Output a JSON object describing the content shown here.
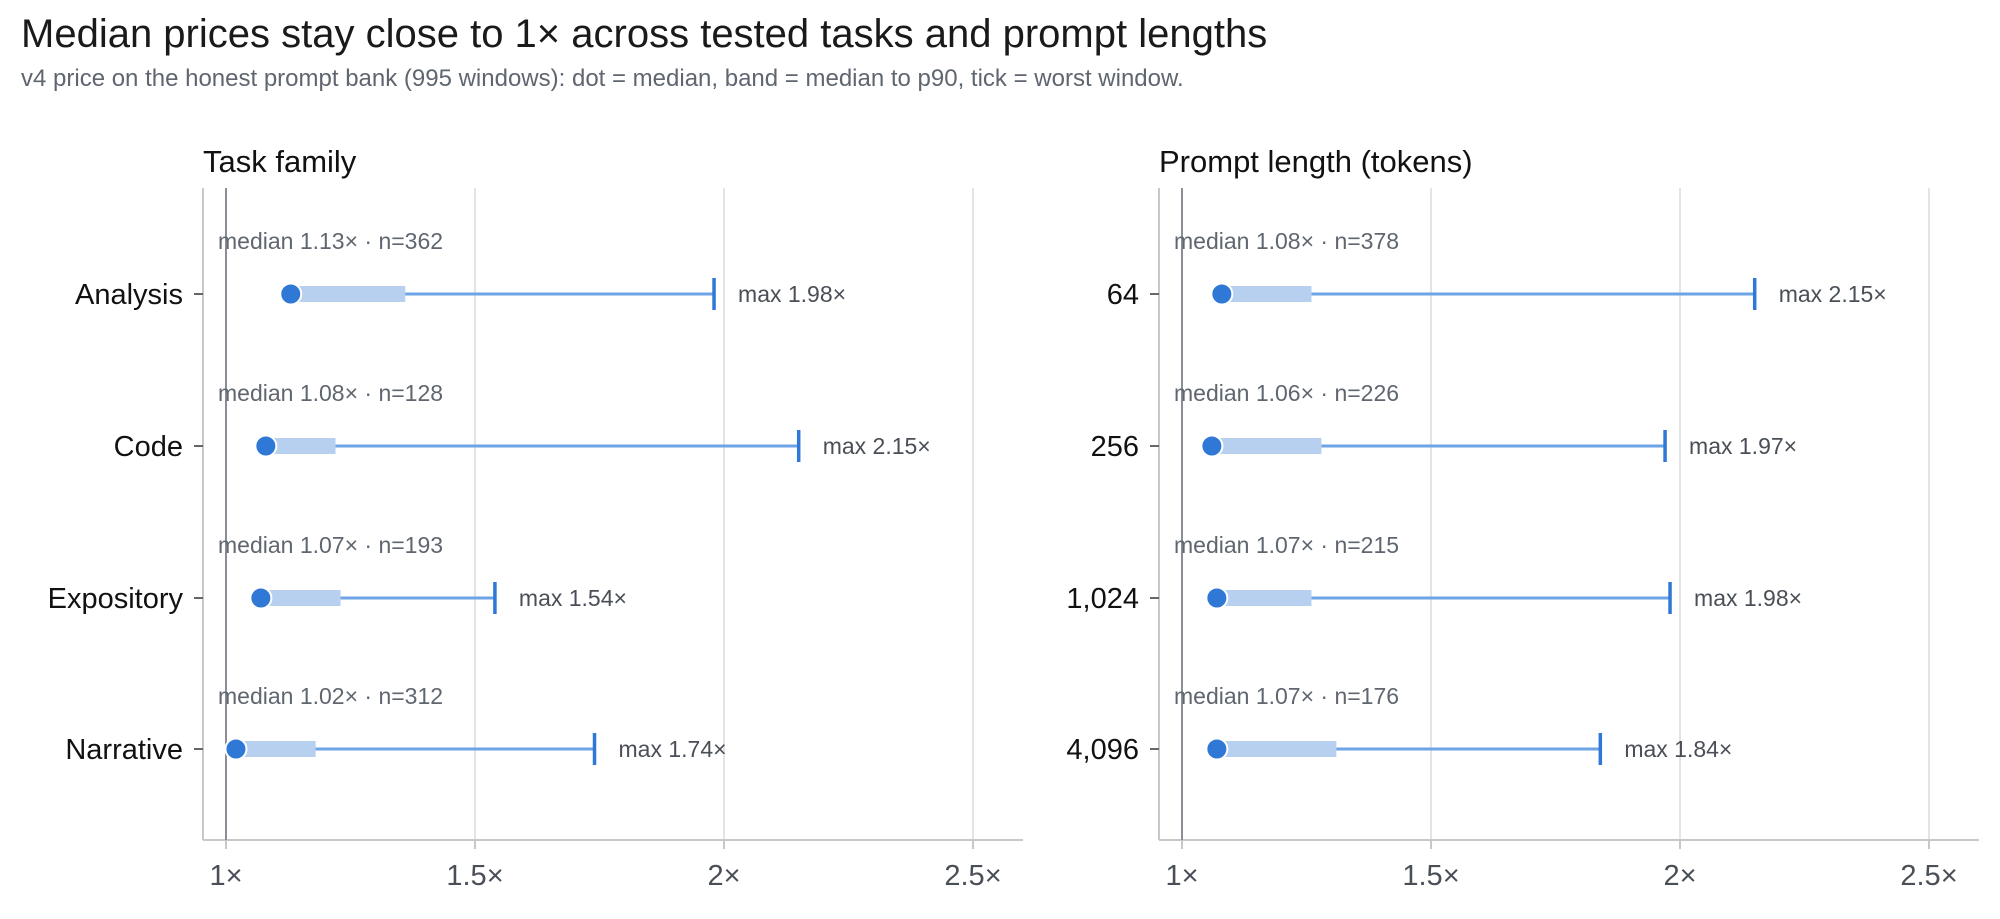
{
  "title": "Median prices stay close to 1× across tested tasks and prompt lengths",
  "subtitle": "v4 price on the honest prompt bank (995 windows): dot = median, band = median to p90, tick = worst window.",
  "colors": {
    "dot": "#2f78d6",
    "band": "#b8d0f0",
    "line": "#6ea3e6",
    "grid": "#dcdcdc",
    "axis": "#c8c8c8",
    "refline": "#8a8f96"
  },
  "chart_data": [
    {
      "type": "range-dot",
      "title": "Task family",
      "x_ticks": [
        1,
        1.5,
        2,
        2.5
      ],
      "x_tick_labels": [
        "1×",
        "1.5×",
        "2×",
        "2.5×"
      ],
      "categories": [
        "Analysis",
        "Code",
        "Expository",
        "Narrative"
      ],
      "series": [
        {
          "category": "Analysis",
          "median": 1.13,
          "p90": 1.36,
          "max": 1.98,
          "n": 362,
          "annotation": "median 1.13×  ·  n=362",
          "max_label": "max 1.98×"
        },
        {
          "category": "Code",
          "median": 1.08,
          "p90": 1.22,
          "max": 2.15,
          "n": 128,
          "annotation": "median 1.08×  ·  n=128",
          "max_label": "max 2.15×"
        },
        {
          "category": "Expository",
          "median": 1.07,
          "p90": 1.23,
          "max": 1.54,
          "n": 193,
          "annotation": "median 1.07×  ·  n=193",
          "max_label": "max 1.54×"
        },
        {
          "category": "Narrative",
          "median": 1.02,
          "p90": 1.18,
          "max": 1.74,
          "n": 312,
          "annotation": "median 1.02×  ·  n=312",
          "max_label": "max 1.74×"
        }
      ]
    },
    {
      "type": "range-dot",
      "title": "Prompt length (tokens)",
      "x_ticks": [
        1,
        1.5,
        2,
        2.5
      ],
      "x_tick_labels": [
        "1×",
        "1.5×",
        "2×",
        "2.5×"
      ],
      "categories": [
        "64",
        "256",
        "1,024",
        "4,096"
      ],
      "series": [
        {
          "category": "64",
          "median": 1.08,
          "p90": 1.26,
          "max": 2.15,
          "n": 378,
          "annotation": "median 1.08×  ·  n=378",
          "max_label": "max 2.15×"
        },
        {
          "category": "256",
          "median": 1.06,
          "p90": 1.28,
          "max": 1.97,
          "n": 226,
          "annotation": "median 1.06×  ·  n=226",
          "max_label": "max 1.97×"
        },
        {
          "category": "1,024",
          "median": 1.07,
          "p90": 1.26,
          "max": 1.98,
          "n": 215,
          "annotation": "median 1.07×  ·  n=215",
          "max_label": "max 1.98×"
        },
        {
          "category": "4,096",
          "median": 1.07,
          "p90": 1.31,
          "max": 1.84,
          "n": 176,
          "annotation": "median 1.07×  ·  n=176",
          "max_label": "max 1.84×"
        }
      ]
    }
  ]
}
